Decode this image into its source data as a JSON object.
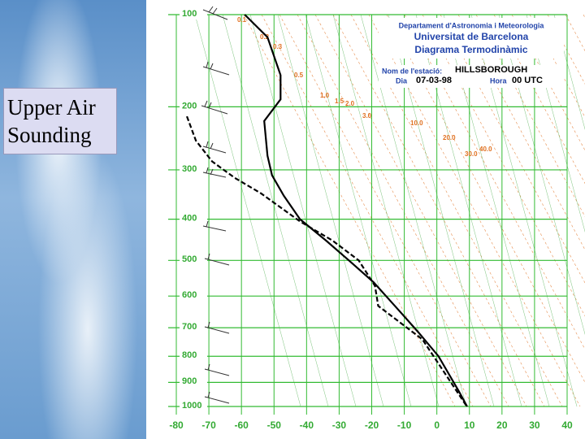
{
  "slide_title": "Upper Air Sounding",
  "chart_data": {
    "type": "sounding",
    "header": [
      "Departament d'Astronomia i Meteorologia",
      "Universitat de Barcelona",
      "Diagrama Termodinàmic"
    ],
    "station_label": "Nom de l'estació:",
    "station": "HILLSBOROUGH",
    "date_label": "Dia",
    "date": "07-03-98",
    "time_label": "Hora",
    "time": "00 UTC",
    "xlim": [
      -80,
      40
    ],
    "xticks": [
      -80,
      -70,
      -60,
      -50,
      -40,
      -30,
      -20,
      -10,
      0,
      10,
      20,
      30,
      40
    ],
    "ylim": [
      1000,
      100
    ],
    "yticks": [
      100,
      200,
      300,
      400,
      500,
      600,
      700,
      800,
      900,
      1000
    ],
    "yscale": "power",
    "yscale_exponent": 0.286,
    "grid": true,
    "grid_color": "#33bb33",
    "mixing_ratio_labels": [
      {
        "value": 0.1,
        "label": "0.1"
      },
      {
        "value": 0.2,
        "label": "0.2"
      },
      {
        "value": 0.3,
        "label": "0.3"
      },
      {
        "value": 0.5,
        "label": "0.5"
      },
      {
        "value": 1,
        "label": "1.0"
      },
      {
        "value": 1.5,
        "label": "1.5"
      },
      {
        "value": 2,
        "label": "2.0"
      },
      {
        "value": 3,
        "label": "3.0"
      },
      {
        "value": 10,
        "label": "10.0"
      },
      {
        "value": 20,
        "label": "20.0"
      },
      {
        "value": 30,
        "label": "30.0"
      },
      {
        "value": 40,
        "label": "40.0"
      }
    ],
    "mixing_ratio_color": "#e07020",
    "series": [
      {
        "style": "solid",
        "color": "#000000",
        "x": [
          9.3,
          6.8,
          0.5,
          -5.7,
          -12,
          -19.4,
          -27,
          -34,
          -42,
          -47,
          -50.6,
          -52,
          -53,
          -48,
          -48,
          -52,
          -59
        ],
        "y": [
          1000,
          937,
          800,
          715,
          640,
          560,
          500,
          450,
          400,
          350,
          310,
          275,
          220,
          190,
          160,
          120,
          100
        ]
      },
      {
        "style": "dashed",
        "color": "#000000",
        "x": [
          9,
          -4.4,
          -18,
          -19,
          -24,
          -32,
          -42,
          -54,
          -62,
          -69,
          -74,
          -77
        ],
        "y": [
          995,
          740,
          630,
          570,
          500,
          450,
          405,
          345,
          315,
          285,
          250,
          210
        ]
      }
    ]
  }
}
